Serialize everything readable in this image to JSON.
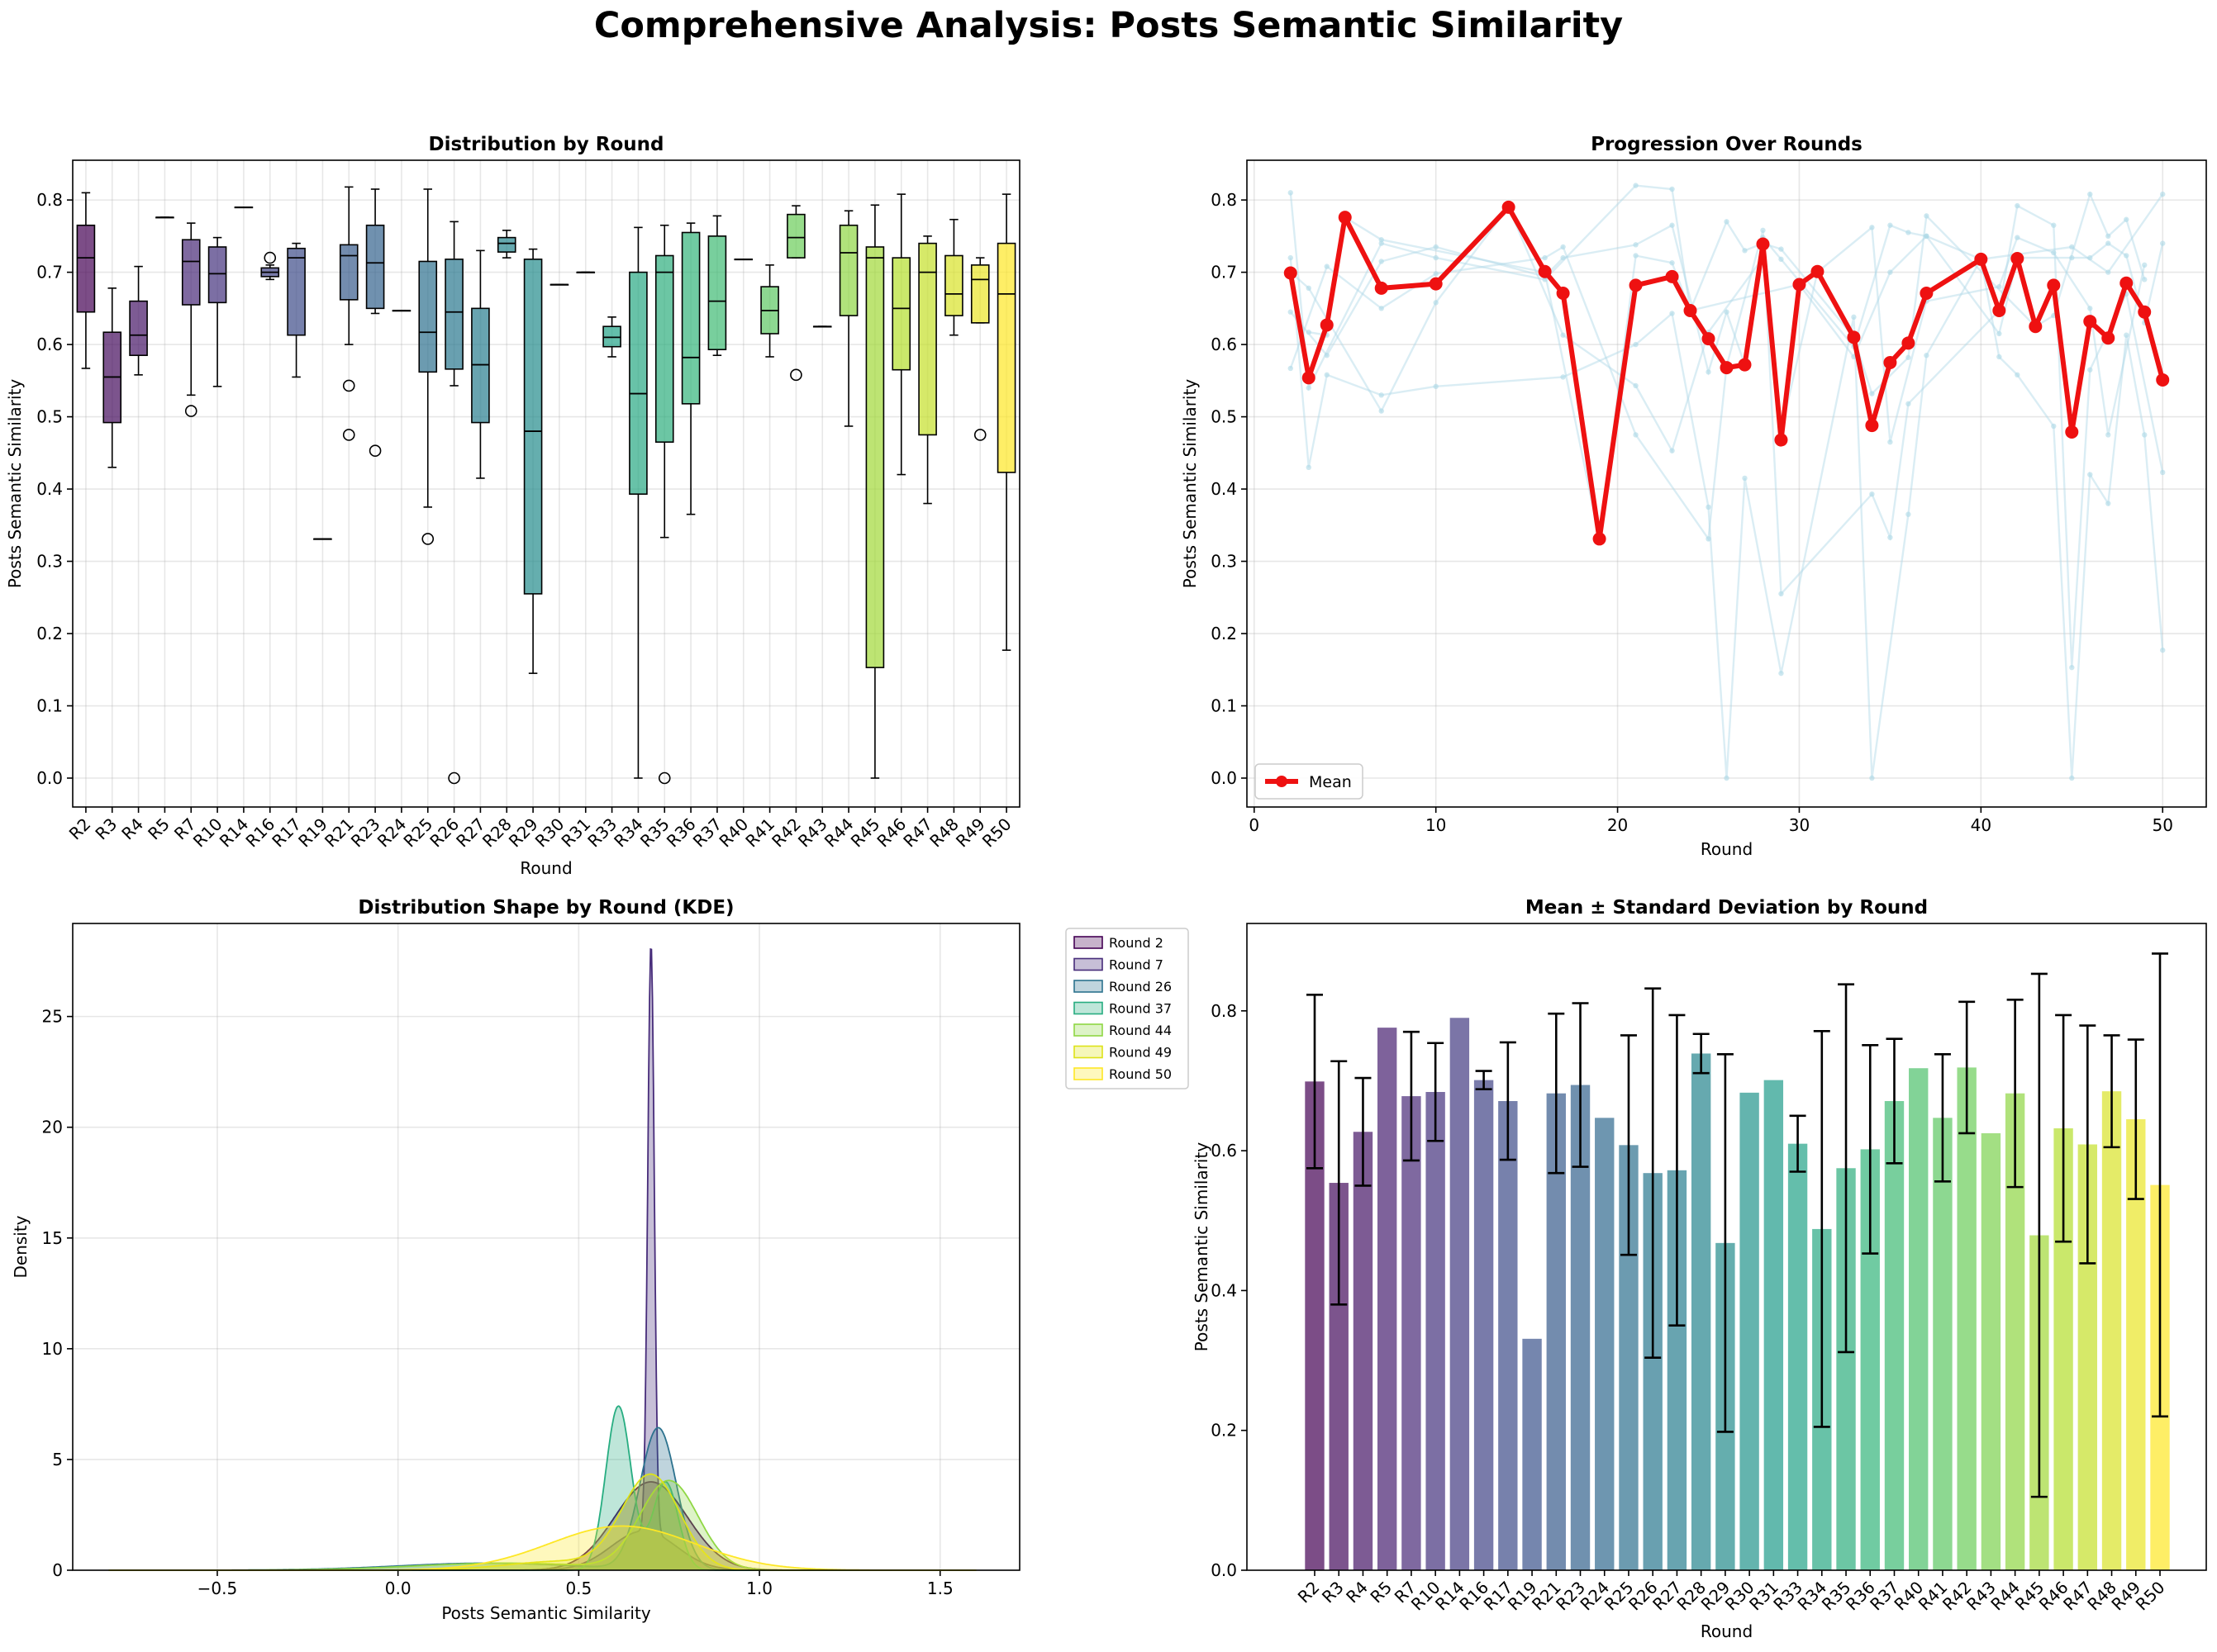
{
  "suptitle": "Comprehensive Analysis: Posts Semantic Similarity",
  "colors": {
    "mean_line": "#ee1111",
    "indiv_line": "#add8e6",
    "errorbar": "#000000"
  },
  "rounds": [
    2,
    3,
    4,
    5,
    7,
    10,
    14,
    16,
    17,
    19,
    21,
    23,
    24,
    25,
    26,
    27,
    28,
    29,
    30,
    31,
    33,
    34,
    35,
    36,
    37,
    40,
    41,
    42,
    43,
    44,
    45,
    46,
    47,
    48,
    49,
    50
  ],
  "chart_data": [
    {
      "type": "box",
      "title": "Distribution by Round",
      "xlabel": "Round",
      "ylabel": "Posts Semantic Similarity",
      "ylim": [
        -0.04,
        0.855
      ],
      "yticks": [
        "0.0",
        "0.1",
        "0.2",
        "0.3",
        "0.4",
        "0.5",
        "0.6",
        "0.7",
        "0.8"
      ],
      "grid": true,
      "categories": [
        "R2",
        "R3",
        "R4",
        "R5",
        "R7",
        "R10",
        "R14",
        "R16",
        "R17",
        "R19",
        "R21",
        "R23",
        "R24",
        "R25",
        "R26",
        "R27",
        "R28",
        "R29",
        "R30",
        "R31",
        "R33",
        "R34",
        "R35",
        "R36",
        "R37",
        "R40",
        "R41",
        "R42",
        "R43",
        "R44",
        "R45",
        "R46",
        "R47",
        "R48",
        "R49",
        "R50"
      ],
      "boxes": [
        {
          "wl": 0.567,
          "q1": 0.645,
          "med": 0.72,
          "q3": 0.765,
          "wh": 0.81,
          "out": []
        },
        {
          "wl": 0.43,
          "q1": 0.492,
          "med": 0.555,
          "q3": 0.617,
          "wh": 0.678,
          "out": []
        },
        {
          "wl": 0.558,
          "q1": 0.585,
          "med": 0.613,
          "q3": 0.66,
          "wh": 0.708,
          "out": []
        },
        {
          "wl": 0.776,
          "q1": 0.776,
          "med": 0.776,
          "q3": 0.776,
          "wh": 0.776,
          "out": []
        },
        {
          "wl": 0.53,
          "q1": 0.655,
          "med": 0.715,
          "q3": 0.745,
          "wh": 0.768,
          "out": [
            0.508
          ]
        },
        {
          "wl": 0.542,
          "q1": 0.658,
          "med": 0.698,
          "q3": 0.735,
          "wh": 0.748,
          "out": []
        },
        {
          "wl": 0.79,
          "q1": 0.79,
          "med": 0.79,
          "q3": 0.79,
          "wh": 0.79,
          "out": []
        },
        {
          "wl": 0.69,
          "q1": 0.694,
          "med": 0.7,
          "q3": 0.706,
          "wh": 0.71,
          "out": [
            0.72
          ]
        },
        {
          "wl": 0.555,
          "q1": 0.613,
          "med": 0.72,
          "q3": 0.733,
          "wh": 0.74,
          "out": []
        },
        {
          "wl": 0.331,
          "q1": 0.331,
          "med": 0.331,
          "q3": 0.331,
          "wh": 0.331,
          "out": []
        },
        {
          "wl": 0.6,
          "q1": 0.662,
          "med": 0.723,
          "q3": 0.738,
          "wh": 0.818,
          "out": [
            0.543,
            0.475
          ]
        },
        {
          "wl": 0.643,
          "q1": 0.65,
          "med": 0.713,
          "q3": 0.765,
          "wh": 0.815,
          "out": [
            0.453
          ]
        },
        {
          "wl": 0.647,
          "q1": 0.647,
          "med": 0.647,
          "q3": 0.647,
          "wh": 0.647,
          "out": []
        },
        {
          "wl": 0.375,
          "q1": 0.562,
          "med": 0.617,
          "q3": 0.715,
          "wh": 0.815,
          "out": [
            0.331
          ]
        },
        {
          "wl": 0.543,
          "q1": 0.566,
          "med": 0.645,
          "q3": 0.718,
          "wh": 0.77,
          "out": [
            0.0
          ]
        },
        {
          "wl": 0.415,
          "q1": 0.492,
          "med": 0.572,
          "q3": 0.65,
          "wh": 0.73,
          "out": []
        },
        {
          "wl": 0.72,
          "q1": 0.728,
          "med": 0.74,
          "q3": 0.748,
          "wh": 0.758,
          "out": []
        },
        {
          "wl": 0.145,
          "q1": 0.255,
          "med": 0.48,
          "q3": 0.718,
          "wh": 0.732,
          "out": []
        },
        {
          "wl": 0.683,
          "q1": 0.683,
          "med": 0.683,
          "q3": 0.683,
          "wh": 0.683,
          "out": []
        },
        {
          "wl": 0.7,
          "q1": 0.7,
          "med": 0.7,
          "q3": 0.7,
          "wh": 0.7,
          "out": []
        },
        {
          "wl": 0.583,
          "q1": 0.597,
          "med": 0.61,
          "q3": 0.625,
          "wh": 0.638,
          "out": []
        },
        {
          "wl": 0.0,
          "q1": 0.393,
          "med": 0.532,
          "q3": 0.7,
          "wh": 0.762,
          "out": []
        },
        {
          "wl": 0.333,
          "q1": 0.465,
          "med": 0.7,
          "q3": 0.723,
          "wh": 0.765,
          "out": [
            0.0
          ]
        },
        {
          "wl": 0.365,
          "q1": 0.518,
          "med": 0.582,
          "q3": 0.755,
          "wh": 0.768,
          "out": []
        },
        {
          "wl": 0.585,
          "q1": 0.593,
          "med": 0.66,
          "q3": 0.75,
          "wh": 0.778,
          "out": []
        },
        {
          "wl": 0.718,
          "q1": 0.718,
          "med": 0.718,
          "q3": 0.718,
          "wh": 0.718,
          "out": []
        },
        {
          "wl": 0.583,
          "q1": 0.615,
          "med": 0.647,
          "q3": 0.68,
          "wh": 0.71,
          "out": []
        },
        {
          "wl": 0.72,
          "q1": 0.72,
          "med": 0.748,
          "q3": 0.78,
          "wh": 0.792,
          "out": [
            0.558
          ]
        },
        {
          "wl": 0.625,
          "q1": 0.625,
          "med": 0.625,
          "q3": 0.625,
          "wh": 0.625,
          "out": []
        },
        {
          "wl": 0.487,
          "q1": 0.64,
          "med": 0.727,
          "q3": 0.765,
          "wh": 0.785,
          "out": []
        },
        {
          "wl": 0.0,
          "q1": 0.153,
          "med": 0.72,
          "q3": 0.735,
          "wh": 0.793,
          "out": []
        },
        {
          "wl": 0.42,
          "q1": 0.565,
          "med": 0.65,
          "q3": 0.72,
          "wh": 0.808,
          "out": []
        },
        {
          "wl": 0.38,
          "q1": 0.475,
          "med": 0.7,
          "q3": 0.74,
          "wh": 0.75,
          "out": []
        },
        {
          "wl": 0.613,
          "q1": 0.64,
          "med": 0.67,
          "q3": 0.723,
          "wh": 0.773,
          "out": []
        },
        {
          "wl": 0.63,
          "q1": 0.63,
          "med": 0.69,
          "q3": 0.71,
          "wh": 0.72,
          "out": [
            0.475
          ]
        },
        {
          "wl": 0.177,
          "q1": 0.423,
          "med": 0.67,
          "q3": 0.74,
          "wh": 0.808,
          "out": []
        }
      ]
    },
    {
      "type": "line",
      "title": "Progression Over Rounds",
      "xlabel": "Round",
      "ylabel": "Posts Semantic Similarity",
      "xlim": [
        -0.4,
        52.4
      ],
      "ylim": [
        -0.04,
        0.855
      ],
      "xticks": [
        "0",
        "10",
        "20",
        "30",
        "40",
        "50"
      ],
      "yticks": [
        "0.0",
        "0.1",
        "0.2",
        "0.3",
        "0.4",
        "0.5",
        "0.6",
        "0.7",
        "0.8"
      ],
      "legend": "lower-left",
      "series": [
        {
          "name": "Mean",
          "x": [
            2,
            3,
            4,
            5,
            7,
            10,
            14,
            16,
            17,
            19,
            21,
            23,
            24,
            25,
            26,
            27,
            28,
            29,
            30,
            31,
            33,
            34,
            35,
            36,
            37,
            40,
            41,
            42,
            43,
            44,
            45,
            46,
            47,
            48,
            49,
            50
          ],
          "y": [
            0.699,
            0.554,
            0.627,
            0.776,
            0.678,
            0.684,
            0.79,
            0.701,
            0.671,
            0.331,
            0.682,
            0.694,
            0.647,
            0.608,
            0.568,
            0.572,
            0.739,
            0.468,
            0.683,
            0.701,
            0.61,
            0.488,
            0.575,
            0.602,
            0.671,
            0.718,
            0.647,
            0.719,
            0.625,
            0.682,
            0.479,
            0.632,
            0.609,
            0.685,
            0.645,
            0.551
          ]
        }
      ],
      "background_lines": [
        {
          "x": [
            2,
            3,
            7,
            10,
            16,
            21,
            23,
            24,
            30,
            33,
            35,
            37,
            40,
            45,
            47,
            50
          ],
          "y": [
            0.81,
            0.54,
            0.74,
            0.72,
            0.69,
            0.82,
            0.815,
            0.647,
            0.683,
            0.583,
            0.7,
            0.75,
            0.718,
            0.735,
            0.7,
            0.808
          ]
        },
        {
          "x": [
            2,
            3,
            4,
            7,
            10,
            17,
            21,
            23,
            25,
            26,
            27,
            29,
            33,
            34,
            36,
            37,
            40,
            41,
            42,
            44,
            45,
            46,
            47,
            48,
            49,
            50
          ],
          "y": [
            0.72,
            0.43,
            0.558,
            0.53,
            0.542,
            0.555,
            0.6,
            0.643,
            0.375,
            0.0,
            0.415,
            0.145,
            0.638,
            0.0,
            0.365,
            0.585,
            0.718,
            0.583,
            0.558,
            0.487,
            0.0,
            0.42,
            0.38,
            0.613,
            0.475,
            0.177
          ]
        },
        {
          "x": [
            2,
            4,
            7,
            10,
            16,
            17,
            21,
            25,
            26,
            28,
            29,
            34,
            35,
            36,
            41,
            42,
            44,
            45,
            46,
            48,
            50
          ],
          "y": [
            0.567,
            0.708,
            0.65,
            0.698,
            0.72,
            0.735,
            0.475,
            0.331,
            0.57,
            0.758,
            0.255,
            0.393,
            0.333,
            0.518,
            0.647,
            0.792,
            0.765,
            0.153,
            0.565,
            0.67,
            0.423
          ]
        },
        {
          "x": [
            2,
            3,
            7,
            10,
            14,
            17,
            21,
            23,
            25,
            28,
            29,
            31,
            34,
            35,
            37,
            41,
            42,
            44,
            46,
            47,
            49
          ],
          "y": [
            0.7,
            0.678,
            0.508,
            0.658,
            0.79,
            0.613,
            0.543,
            0.453,
            0.617,
            0.72,
            0.48,
            0.7,
            0.762,
            0.465,
            0.66,
            0.68,
            0.748,
            0.727,
            0.65,
            0.475,
            0.71
          ]
        },
        {
          "x": [
            3,
            4,
            5,
            7,
            16,
            19,
            21,
            23,
            24,
            26,
            27,
            28,
            29,
            33,
            34,
            36,
            37,
            43,
            44,
            46,
            47,
            48,
            49
          ],
          "y": [
            0.617,
            0.613,
            0.776,
            0.745,
            0.7,
            0.331,
            0.723,
            0.713,
            0.647,
            0.77,
            0.73,
            0.74,
            0.732,
            0.61,
            0.532,
            0.582,
            0.778,
            0.625,
            0.64,
            0.808,
            0.75,
            0.773,
            0.69
          ]
        },
        {
          "x": [
            2,
            4,
            7,
            10,
            16,
            17,
            21,
            23,
            25,
            26,
            27,
            28,
            29,
            33,
            35,
            36,
            37,
            41,
            42,
            45,
            46,
            47,
            48,
            49,
            50
          ],
          "y": [
            0.645,
            0.585,
            0.715,
            0.735,
            0.694,
            0.72,
            0.738,
            0.765,
            0.562,
            0.645,
            0.572,
            0.748,
            0.718,
            0.597,
            0.765,
            0.755,
            0.75,
            0.615,
            0.72,
            0.72,
            0.72,
            0.74,
            0.723,
            0.63,
            0.74
          ]
        }
      ]
    },
    {
      "type": "area",
      "title": "Distribution Shape by Round (KDE)",
      "xlabel": "Posts Semantic Similarity",
      "ylabel": "Density",
      "xlim": [
        -0.9,
        1.72
      ],
      "ylim": [
        0,
        29.2
      ],
      "xticks": [
        "−0.5",
        "0.0",
        "0.5",
        "1.0",
        "1.5"
      ],
      "yticks": [
        "0",
        "5",
        "10",
        "15",
        "20",
        "25"
      ],
      "legend": "outside-right",
      "series": [
        {
          "name": "Round 2",
          "color": "#440154",
          "components": [
            {
              "mu": 0.7,
              "sigma": 0.1,
              "w": 1.0
            }
          ]
        },
        {
          "name": "Round 7",
          "color": "#472c7a",
          "components": [
            {
              "mu": 0.7,
              "sigma": 0.009,
              "w": 0.6
            },
            {
              "mu": 0.68,
              "sigma": 0.09,
              "w": 0.4
            }
          ]
        },
        {
          "name": "Round 26",
          "color": "#2c728e",
          "components": [
            {
              "mu": 0.72,
              "sigma": 0.05,
              "w": 0.8
            },
            {
              "mu": 0.25,
              "sigma": 0.25,
              "w": 0.2
            }
          ]
        },
        {
          "name": "Round 37",
          "color": "#27ad81",
          "components": [
            {
              "mu": 0.61,
              "sigma": 0.035,
              "w": 0.65
            },
            {
              "mu": 0.74,
              "sigma": 0.035,
              "w": 0.35
            }
          ]
        },
        {
          "name": "Round 44",
          "color": "#8fd744",
          "components": [
            {
              "mu": 0.75,
              "sigma": 0.08,
              "w": 0.8
            },
            {
              "mu": 0.3,
              "sigma": 0.25,
              "w": 0.2
            }
          ]
        },
        {
          "name": "Round 49",
          "color": "#dde318",
          "components": [
            {
              "mu": 0.7,
              "sigma": 0.08,
              "w": 0.85
            },
            {
              "mu": 0.45,
              "sigma": 0.15,
              "w": 0.15
            }
          ]
        },
        {
          "name": "Round 50",
          "color": "#fde725",
          "components": [
            {
              "mu": 0.62,
              "sigma": 0.2,
              "w": 1.0
            }
          ]
        }
      ]
    },
    {
      "type": "bar",
      "title": "Mean ± Standard Deviation by Round",
      "xlabel": "Round",
      "ylabel": "Posts Semantic Similarity",
      "ylim": [
        0,
        0.925
      ],
      "yticks": [
        "0.0",
        "0.2",
        "0.4",
        "0.6",
        "0.8"
      ],
      "categories": [
        "R2",
        "R3",
        "R4",
        "R5",
        "R7",
        "R10",
        "R14",
        "R16",
        "R17",
        "R19",
        "R21",
        "R23",
        "R24",
        "R25",
        "R26",
        "R27",
        "R28",
        "R29",
        "R30",
        "R31",
        "R33",
        "R34",
        "R35",
        "R36",
        "R37",
        "R40",
        "R41",
        "R42",
        "R43",
        "R44",
        "R45",
        "R46",
        "R47",
        "R48",
        "R49",
        "R50"
      ],
      "values": [
        0.699,
        0.554,
        0.627,
        0.776,
        0.678,
        0.684,
        0.79,
        0.701,
        0.671,
        0.331,
        0.682,
        0.694,
        0.647,
        0.608,
        0.568,
        0.572,
        0.739,
        0.468,
        0.683,
        0.701,
        0.61,
        0.488,
        0.575,
        0.602,
        0.671,
        0.718,
        0.647,
        0.719,
        0.625,
        0.682,
        0.479,
        0.632,
        0.609,
        0.685,
        0.645,
        0.551
      ],
      "errors": [
        0.124,
        0.174,
        0.077,
        0,
        0.092,
        0.07,
        0,
        0.013,
        0.084,
        0,
        0.114,
        0.117,
        0,
        0.157,
        0.264,
        0.222,
        0.028,
        0.27,
        0,
        0,
        0.04,
        0.283,
        0.263,
        0.149,
        0.089,
        0,
        0.091,
        0.094,
        0,
        0.134,
        0.374,
        0.162,
        0.17,
        0.08,
        0.114,
        0.331
      ]
    }
  ]
}
